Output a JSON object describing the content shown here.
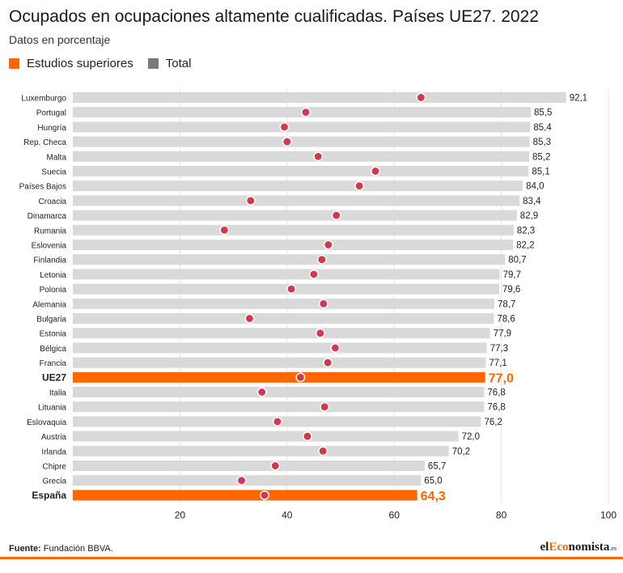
{
  "header": {
    "title": "Ocupados en ocupaciones altamente cualificadas. Países UE27. 2022",
    "subtitle": "Datos en porcentaje"
  },
  "legend": [
    {
      "label": "Estudios superiores",
      "color": "#ff6600"
    },
    {
      "label": "Total",
      "color": "#7a7a7a"
    }
  ],
  "colors": {
    "bar": "#d9d9d9",
    "highlight_bar": "#ff6600",
    "dot": "#d1394f",
    "grid": "#e6e6e6",
    "accent": "#ff6600"
  },
  "footer": {
    "source_label": "Fuente:",
    "source_text": "Fundación BBVA.",
    "brand_pre": "el",
    "brand_accent": "Eco",
    "brand_post": "nomista",
    "brand_tld": ".es"
  },
  "chart_data": {
    "type": "bar",
    "orientation": "horizontal",
    "xlim": [
      0,
      100
    ],
    "xticks": [
      20,
      40,
      60,
      80,
      100
    ],
    "grid": true,
    "legend_position": "top-left",
    "categories": [
      "Luxemburgo",
      "Portugal",
      "Hungría",
      "Rep. Checa",
      "Malta",
      "Suecia",
      "Países Bajos",
      "Croacia",
      "Dinamarca",
      "Rumania",
      "Eslovenia",
      "Finlandia",
      "Letonia",
      "Polonia",
      "Alemania",
      "Bulgaria",
      "Estonia",
      "Bélgica",
      "Francia",
      "UE27",
      "Italia",
      "Lituania",
      "Eslovaquia",
      "Austria",
      "Irlanda",
      "Chipre",
      "Grecia",
      "España"
    ],
    "highlight": [
      "UE27",
      "España"
    ],
    "series": [
      {
        "name": "Estudios superiores",
        "values": [
          92.1,
          85.5,
          85.4,
          85.3,
          85.2,
          85.1,
          84.0,
          83.4,
          82.9,
          82.3,
          82.2,
          80.7,
          79.7,
          79.6,
          78.7,
          78.6,
          77.9,
          77.3,
          77.1,
          77.0,
          76.8,
          76.8,
          76.2,
          72.0,
          70.2,
          65.7,
          65.0,
          64.3
        ],
        "labels": [
          "92,1",
          "85,5",
          "85,4",
          "85,3",
          "85,2",
          "85,1",
          "84,0",
          "83,4",
          "82,9",
          "82,3",
          "82,2",
          "80,7",
          "79,7",
          "79,6",
          "78,7",
          "78,6",
          "77,9",
          "77,3",
          "77,1",
          "77,0",
          "76,8",
          "76,8",
          "76,2",
          "72,0",
          "70,2",
          "65,7",
          "65,0",
          "64,3"
        ]
      },
      {
        "name": "Total",
        "values": [
          65.0,
          43.5,
          39.5,
          40.0,
          45.8,
          56.5,
          53.5,
          33.2,
          49.2,
          28.3,
          47.7,
          46.5,
          45.0,
          40.8,
          46.8,
          33.0,
          46.2,
          49.0,
          47.6,
          42.5,
          35.3,
          47.0,
          38.2,
          43.8,
          46.7,
          37.8,
          31.5,
          35.8
        ]
      }
    ]
  }
}
